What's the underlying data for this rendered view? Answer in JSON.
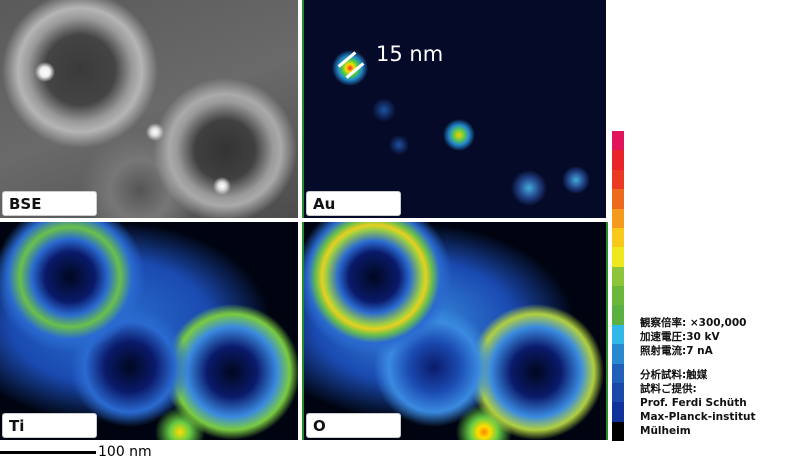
{
  "panels": {
    "bse": {
      "label": "BSE"
    },
    "au": {
      "label": "Au",
      "marker_label": "15 nm"
    },
    "ti": {
      "label": "Ti"
    },
    "o": {
      "label": "O"
    }
  },
  "colorbar": {
    "colors": [
      "#e0145a",
      "#e8232a",
      "#ea3a22",
      "#ec6a1e",
      "#f49a1c",
      "#f8c81a",
      "#f0e81e",
      "#8cc43a",
      "#6ab83a",
      "#5ab040",
      "#30b8e8",
      "#2a88d0",
      "#2060b8",
      "#1a48a8",
      "#10309a",
      "#000000"
    ]
  },
  "caption": {
    "line1": "観察倍率: ×300,000",
    "line2": "加速電圧:30 kV",
    "line3": "照射電流:7 nA",
    "line4": "分析試料:触媒",
    "line5": "試料ご提供:",
    "line6": "Prof.  Ferdi Schüth",
    "line7": "Max-Planck-institut Mülheim"
  },
  "scale_bar": {
    "label": "100 nm"
  }
}
